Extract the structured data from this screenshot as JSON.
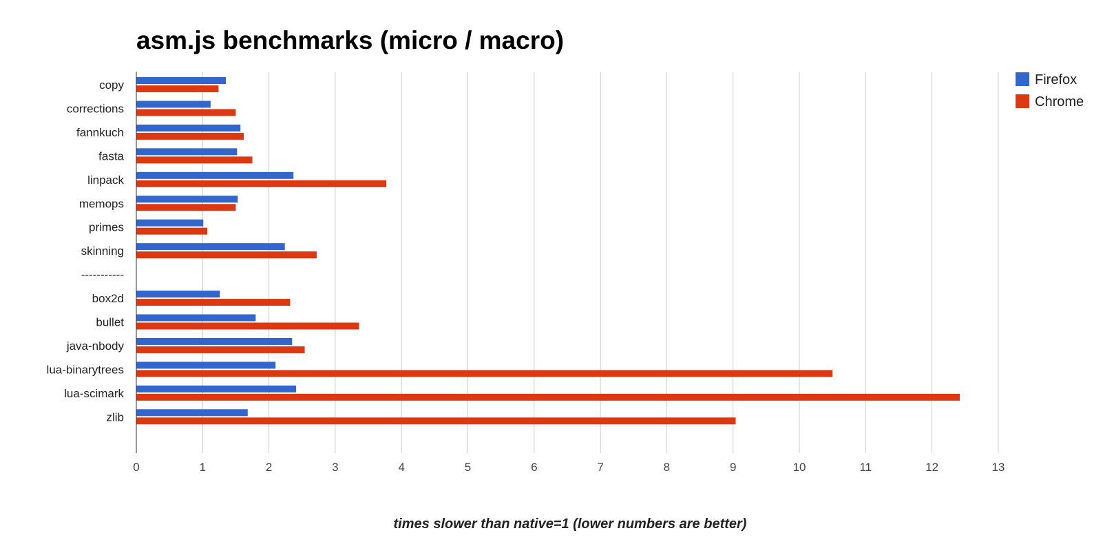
{
  "chart_data": {
    "type": "bar",
    "orientation": "horizontal",
    "title": "asm.js benchmarks (micro / macro)",
    "xlabel": "times slower than native=1 (lower numbers are better)",
    "ylabel": "",
    "xlim": [
      0,
      13
    ],
    "xticks": [
      0,
      1,
      2,
      3,
      4,
      5,
      6,
      7,
      8,
      9,
      10,
      11,
      12,
      13
    ],
    "grid": true,
    "legend_position": "top-right",
    "categories": [
      "copy",
      "corrections",
      "fannkuch",
      "fasta",
      "linpack",
      "memops",
      "primes",
      "skinning",
      "-----------",
      "box2d",
      "bullet",
      "java-nbody",
      "lua-binarytrees",
      "lua-scimark",
      "zlib"
    ],
    "series": [
      {
        "name": "Firefox",
        "color": "#3366cc",
        "values": [
          1.35,
          1.12,
          1.57,
          1.52,
          2.37,
          1.53,
          1.01,
          2.24,
          null,
          1.26,
          1.8,
          2.35,
          2.1,
          2.41,
          1.68
        ]
      },
      {
        "name": "Chrome",
        "color": "#dc3912",
        "values": [
          1.24,
          1.5,
          1.62,
          1.75,
          3.77,
          1.5,
          1.07,
          2.72,
          null,
          2.32,
          3.36,
          2.54,
          10.5,
          12.42,
          9.04
        ]
      }
    ]
  }
}
